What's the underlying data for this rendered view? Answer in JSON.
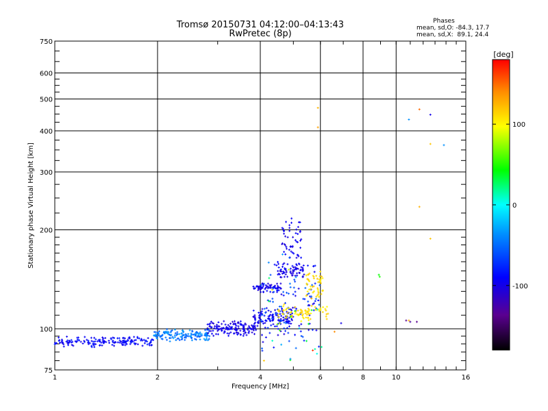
{
  "chart_data": {
    "type": "scatter",
    "title": "Tromsø 20150731 04:12:00–04:13:43",
    "subtitle": "RwPretec (8p)",
    "xlabel": "Frequency [MHz]",
    "ylabel": "Stationary phase Virtual Height [km]",
    "x_scale": "log",
    "y_scale": "log",
    "xlim": [
      1,
      16
    ],
    "ylim": [
      75,
      750
    ],
    "x_ticks": [
      1,
      2,
      4,
      6,
      8,
      10,
      16
    ],
    "x_tick_labels": [
      "1",
      "2",
      "4",
      "6",
      "8",
      "10",
      "16"
    ],
    "y_ticks": [
      75,
      100,
      200,
      300,
      400,
      500,
      600,
      750
    ],
    "y_tick_labels": [
      "75",
      "100",
      "200",
      "300",
      "400",
      "500",
      "600",
      "750"
    ],
    "grid": true,
    "phase_stats": {
      "header": "Phases",
      "line_o": "mean, sd,O: -84.3, 17.7",
      "line_x": "mean, sd,X:  89.1, 24.4"
    },
    "colorbar": {
      "label": "[deg]",
      "range": [
        -180,
        180
      ],
      "ticks": [
        100,
        0,
        -100
      ],
      "tick_labels": [
        "100",
        "0",
        "-100"
      ]
    },
    "segments": [
      {
        "x0": 1.0,
        "x1": 1.95,
        "y0": 90,
        "y1": 93,
        "n": 170,
        "phase": -100,
        "jitter": 0.025,
        "spread": 12
      },
      {
        "x0": 1.95,
        "x1": 2.85,
        "y0": 93,
        "y1": 98,
        "n": 150,
        "phase": -65,
        "jitter": 0.022,
        "spread": 14
      },
      {
        "x0": 2.8,
        "x1": 3.9,
        "y0": 97,
        "y1": 104,
        "n": 150,
        "phase": -110,
        "jitter": 0.022,
        "spread": 12
      },
      {
        "x0": 3.8,
        "x1": 5.0,
        "y0": 103,
        "y1": 113,
        "n": 110,
        "phase": -105,
        "jitter": 0.025,
        "spread": 14
      },
      {
        "x0": 3.8,
        "x1": 4.6,
        "y0": 132,
        "y1": 136,
        "n": 60,
        "phase": -110,
        "jitter": 0.015,
        "spread": 10
      },
      {
        "x0": 4.5,
        "x1": 5.4,
        "y0": 145,
        "y1": 152,
        "n": 45,
        "phase": -112,
        "jitter": 0.015,
        "spread": 10
      },
      {
        "x0": 4.4,
        "x1": 5.8,
        "y0": 150,
        "y1": 158,
        "n": 30,
        "phase": -105,
        "jitter": 0.015,
        "spread": 10
      },
      {
        "x0": 4.6,
        "x1": 5.3,
        "y0": 165,
        "y1": 210,
        "n": 50,
        "phase": -108,
        "jitter": 0.04,
        "spread": 10
      },
      {
        "x0": 4.0,
        "x1": 6.0,
        "y0": 90,
        "y1": 140,
        "n": 120,
        "phase": -95,
        "jitter": 0.06,
        "spread": 25
      },
      {
        "x0": 4.5,
        "x1": 6.4,
        "y0": 108,
        "y1": 116,
        "n": 80,
        "phase": 95,
        "jitter": 0.03,
        "spread": 14
      },
      {
        "x0": 5.4,
        "x1": 6.1,
        "y0": 125,
        "y1": 148,
        "n": 50,
        "phase": 100,
        "jitter": 0.03,
        "spread": 14
      },
      {
        "x0": 4.2,
        "x1": 6.3,
        "y0": 82,
        "y1": 160,
        "n": 30,
        "phase": 0,
        "jitter": 0.06,
        "spread": 80
      }
    ],
    "points": [
      {
        "x": 5.9,
        "y": 470,
        "phase": 120
      },
      {
        "x": 5.9,
        "y": 410,
        "phase": 130
      },
      {
        "x": 8.9,
        "y": 146,
        "phase": 20
      },
      {
        "x": 8.95,
        "y": 144,
        "phase": 25
      },
      {
        "x": 10.7,
        "y": 106,
        "phase": -150
      },
      {
        "x": 10.9,
        "y": 106,
        "phase": 120
      },
      {
        "x": 11.0,
        "y": 105,
        "phase": -140
      },
      {
        "x": 11.5,
        "y": 105,
        "phase": -150
      },
      {
        "x": 10.9,
        "y": 433,
        "phase": -60
      },
      {
        "x": 11.7,
        "y": 465,
        "phase": 150
      },
      {
        "x": 12.6,
        "y": 448,
        "phase": -110
      },
      {
        "x": 12.6,
        "y": 365,
        "phase": 110
      },
      {
        "x": 13.8,
        "y": 362,
        "phase": -60
      },
      {
        "x": 11.7,
        "y": 235,
        "phase": 120
      },
      {
        "x": 12.6,
        "y": 188,
        "phase": 110
      },
      {
        "x": 6.9,
        "y": 104,
        "phase": -110
      },
      {
        "x": 6.6,
        "y": 98,
        "phase": 140
      },
      {
        "x": 4.1,
        "y": 80,
        "phase": 110
      },
      {
        "x": 4.9,
        "y": 81,
        "phase": -60
      },
      {
        "x": 5.7,
        "y": 86,
        "phase": 165
      }
    ]
  }
}
